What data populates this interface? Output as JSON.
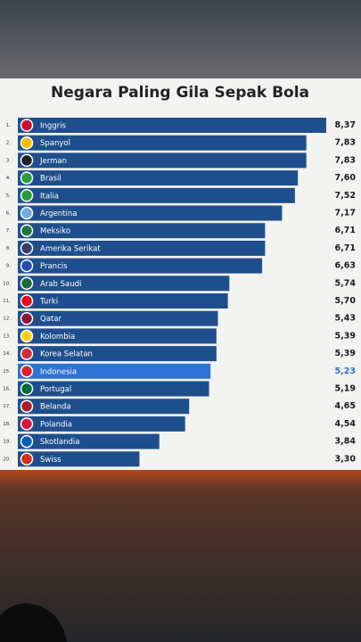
{
  "chart_data": {
    "type": "bar",
    "orientation": "horizontal",
    "title": "Negara Paling Gila Sepak Bola",
    "ranks": [
      "1.",
      "2.",
      "3.",
      "4.",
      "5.",
      "6.",
      "7.",
      "8.",
      "9.",
      "10.",
      "11.",
      "12.",
      "13.",
      "14.",
      "15.",
      "16.",
      "17.",
      "18.",
      "19.",
      "20."
    ],
    "categories": [
      "Inggris",
      "Spanyol",
      "Jerman",
      "Brasil",
      "Italia",
      "Argentina",
      "Meksiko",
      "Amerika Serikat",
      "Prancis",
      "Arab Saudi",
      "Turki",
      "Qatar",
      "Kolombia",
      "Korea Selatan",
      "Indonesia",
      "Portugal",
      "Belanda",
      "Polandia",
      "Skotlandia",
      "Swiss"
    ],
    "values": [
      8.37,
      7.83,
      7.83,
      7.6,
      7.52,
      7.17,
      6.71,
      6.71,
      6.63,
      5.74,
      5.7,
      5.43,
      5.39,
      5.39,
      5.23,
      5.19,
      4.65,
      4.54,
      3.84,
      3.3
    ],
    "value_labels": [
      "8,37",
      "7,83",
      "7,83",
      "7,60",
      "7,52",
      "7,17",
      "6,71",
      "6,71",
      "6,63",
      "5,74",
      "5,70",
      "5,43",
      "5,39",
      "5,39",
      "5,23",
      "5,19",
      "4,65",
      "4,54",
      "3,84",
      "3,30"
    ],
    "colors": [
      "#1e4f8c",
      "#1e4f8c",
      "#1e4f8c",
      "#1e4f8c",
      "#1e4f8c",
      "#1e4f8c",
      "#1e4f8c",
      "#1e4f8c",
      "#1e4f8c",
      "#1e4f8c",
      "#1e4f8c",
      "#1e4f8c",
      "#1e4f8c",
      "#1e4f8c",
      "#2e72d2",
      "#1e4f8c",
      "#1e4f8c",
      "#1e4f8c",
      "#1e4f8c",
      "#1e4f8c"
    ],
    "value_label_colors": [
      "#1a1a1a",
      "#1a1a1a",
      "#1a1a1a",
      "#1a1a1a",
      "#1a1a1a",
      "#1a1a1a",
      "#1a1a1a",
      "#1a1a1a",
      "#1a1a1a",
      "#1a1a1a",
      "#1a1a1a",
      "#1a1a1a",
      "#1a1a1a",
      "#1a1a1a",
      "#2e72d2",
      "#1a1a1a",
      "#1a1a1a",
      "#1a1a1a",
      "#1a1a1a",
      "#1a1a1a"
    ]
  }
}
